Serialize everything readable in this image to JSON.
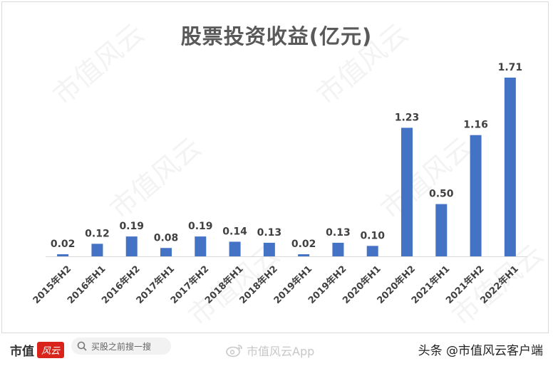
{
  "chart_data": {
    "type": "bar",
    "title": "股票投资收益(亿元)",
    "categories": [
      "2015年H2",
      "2016年H1",
      "2016年H2",
      "2017年H1",
      "2017年H2",
      "2018年H1",
      "2018年H2",
      "2019年H1",
      "2019年H2",
      "2020年H1",
      "2020年H2",
      "2021年H1",
      "2021年H2",
      "2022年H1"
    ],
    "values": [
      0.02,
      0.12,
      0.19,
      0.08,
      0.19,
      0.14,
      0.13,
      0.02,
      0.13,
      0.1,
      1.23,
      0.5,
      1.16,
      1.71
    ],
    "value_labels": [
      "0.02",
      "0.12",
      "0.19",
      "0.08",
      "0.19",
      "0.14",
      "0.13",
      "0.02",
      "0.13",
      "0.10",
      "1.23",
      "0.50",
      "1.16",
      "1.71"
    ],
    "ylim": [
      0,
      1.71
    ],
    "bar_color": "#4472c4",
    "grid": false,
    "legend": "none"
  },
  "watermark": {
    "text": "市值风云"
  },
  "footer": {
    "logo_text": "市值",
    "logo_badge": "风云",
    "search_placeholder": "买股之前搜一搜",
    "weibo_text": "市值风云App",
    "credit": "头条 @市值风云客户端"
  },
  "colors": {
    "accent": "#d9241b",
    "bar": "#4472c4",
    "label": "#404040"
  }
}
